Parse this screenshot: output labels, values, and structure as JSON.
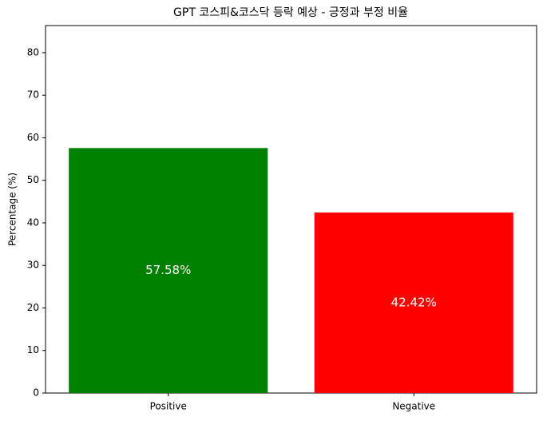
{
  "chart_data": {
    "type": "bar",
    "title": "GPT 코스피&코스닥 등락 예상 - 긍정과 부정 비율",
    "y_label": "Percentage (%)",
    "categories": [
      "Positive",
      "Negative"
    ],
    "values": [
      57.58,
      42.42
    ],
    "value_labels": [
      "57.58%",
      "42.42%"
    ],
    "colors": [
      "green",
      "red"
    ],
    "ylim": [
      0,
      86.37
    ],
    "yticks": [
      0,
      10,
      20,
      30,
      40,
      50,
      60,
      70,
      80
    ],
    "grid": false
  }
}
